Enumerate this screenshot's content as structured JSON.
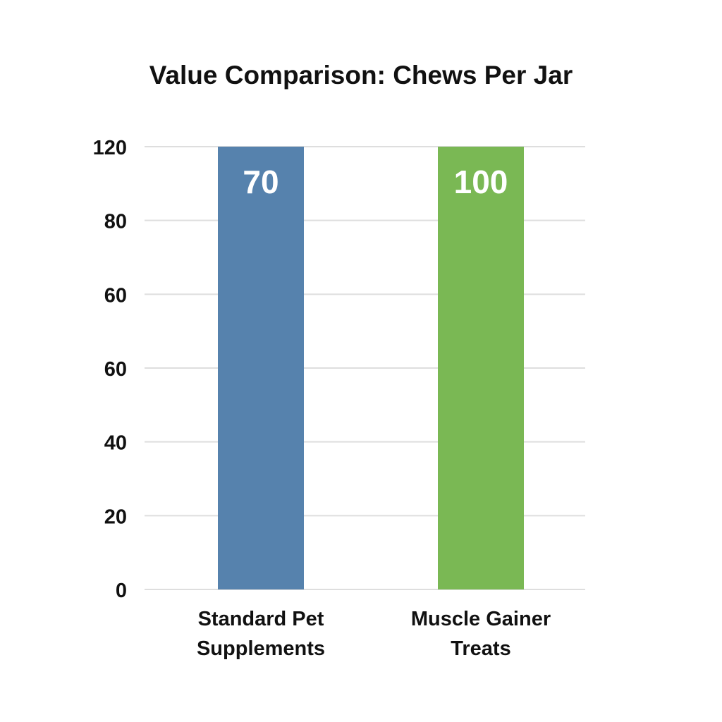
{
  "chart_data": {
    "type": "bar",
    "title": "Value Comparison: Chews Per Jar",
    "xlabel": "",
    "ylabel": "",
    "categories": [
      "Standard Pet Supplements",
      "Muscle Gainer Treats"
    ],
    "category_lines": [
      [
        "Standard Pet",
        "Supplements"
      ],
      [
        "Muscle Gainer",
        "Treats"
      ]
    ],
    "values": [
      70,
      100
    ],
    "data_labels": [
      "70",
      "100"
    ],
    "bar_colors": [
      "#5682ad",
      "#7ab854"
    ],
    "y_tick_labels": [
      "0",
      "20",
      "40",
      "60",
      "60",
      "80",
      "120"
    ],
    "ylim": [
      0,
      120
    ],
    "grid": true,
    "legend": "none"
  }
}
